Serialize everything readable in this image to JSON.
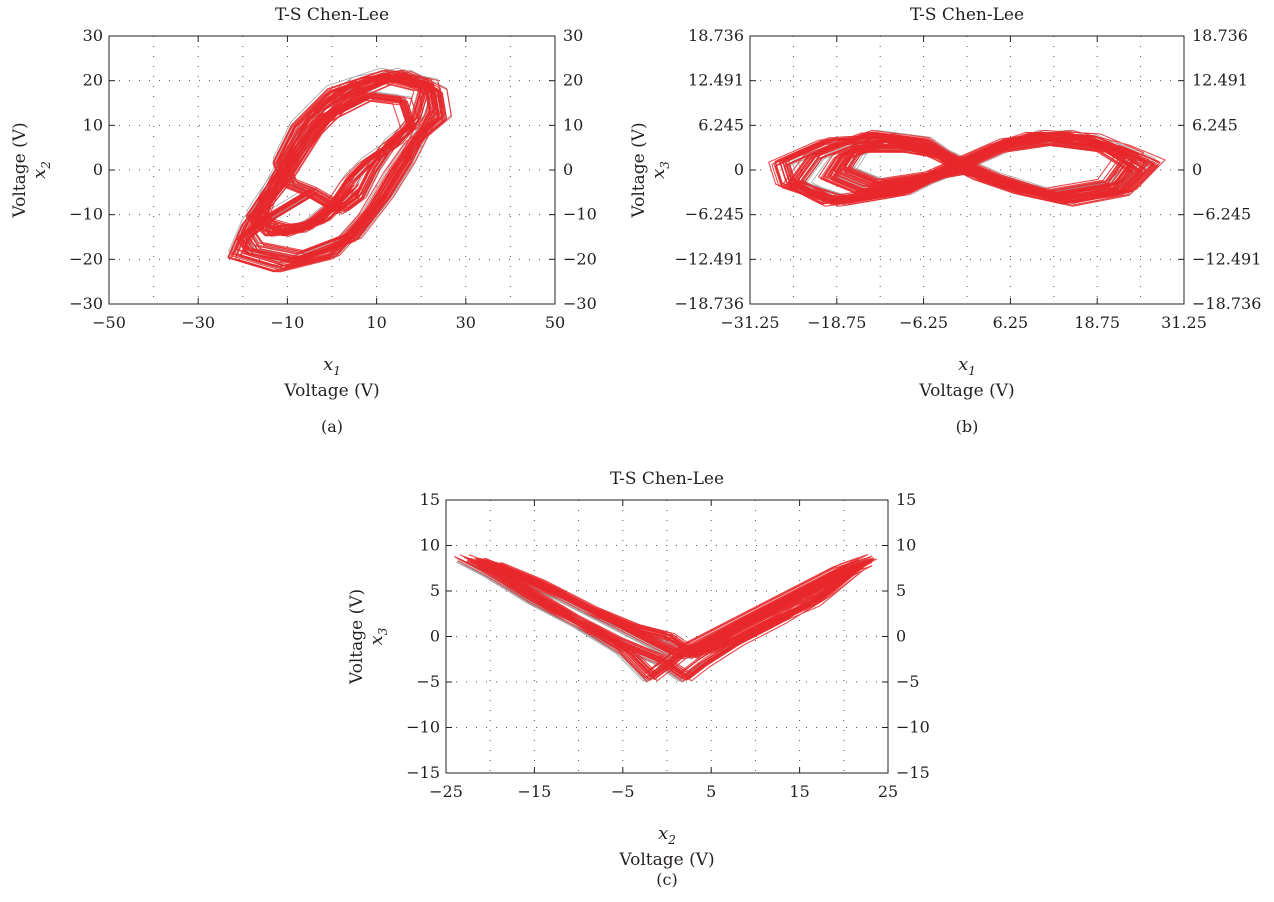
{
  "colors": {
    "trajectory_main": "#e8282b",
    "trajectory_halo": "#9a9a9a",
    "axis": "#231f20"
  },
  "chart_data": [
    {
      "type": "line",
      "panel_label": "(a)",
      "title": "T-S Chen-Lee",
      "xvar": "x",
      "xvar_sub": "1",
      "yvar": "x",
      "yvar_sub": "2",
      "xlabel": "Voltage (V)",
      "ylabel": "Voltage (V)",
      "xlim": [
        -50,
        50
      ],
      "ylim": [
        -30,
        30
      ],
      "xticks": [
        -50,
        -30,
        -10,
        10,
        30,
        50
      ],
      "xtick_labels": [
        "−50",
        "−30",
        "−10",
        "10",
        "30",
        "50"
      ],
      "yticks": [
        30,
        20,
        10,
        0,
        -10,
        -20,
        -30
      ],
      "ytick_labels": [
        "30",
        "20",
        "10",
        "0",
        "−10",
        "−20",
        "−30"
      ],
      "right_ytick_labels": [
        "30",
        "20",
        "10",
        "0",
        "−10",
        "−20",
        "−30"
      ],
      "grid": true,
      "series": [
        {
          "color": "#e8282b",
          "points": [
            [
              -5,
              -5
            ],
            [
              -15,
              -11
            ],
            [
              -20,
              -15
            ],
            [
              -18,
              -18
            ],
            [
              -8,
              -20
            ],
            [
              5,
              -15
            ],
            [
              12,
              -6
            ],
            [
              17,
              2
            ],
            [
              20,
              8
            ],
            [
              23,
              14
            ],
            [
              22,
              20
            ],
            [
              12,
              22
            ],
            [
              0,
              18
            ],
            [
              -8,
              10
            ],
            [
              -12,
              2
            ],
            [
              -10,
              -3
            ],
            [
              -5,
              -5
            ],
            [
              2,
              -9
            ],
            [
              6,
              -6
            ],
            [
              9,
              0
            ],
            [
              13,
              6
            ],
            [
              18,
              10
            ],
            [
              16,
              16
            ],
            [
              8,
              17
            ],
            [
              -2,
              12
            ],
            [
              -8,
              4
            ],
            [
              -14,
              -4
            ],
            [
              -18,
              -10
            ],
            [
              -14,
              -14
            ],
            [
              -6,
              -13
            ],
            [
              0,
              -8
            ],
            [
              4,
              -2
            ],
            [
              8,
              2
            ],
            [
              14,
              6
            ],
            [
              19,
              12
            ],
            [
              21,
              19
            ],
            [
              13,
              21
            ],
            [
              4,
              17
            ],
            [
              -4,
              9
            ],
            [
              -11,
              -2
            ],
            [
              -19,
              -12
            ],
            [
              -22,
              -19
            ],
            [
              -12,
              -22
            ],
            [
              0,
              -19
            ],
            [
              8,
              -10
            ],
            [
              14,
              0
            ],
            [
              19,
              7
            ],
            [
              25,
              12
            ],
            [
              24,
              18
            ],
            [
              16,
              22
            ],
            [
              6,
              20
            ],
            [
              -3,
              14
            ],
            [
              -9,
              5
            ],
            [
              -15,
              -6
            ],
            [
              -17,
              -12
            ],
            [
              -10,
              -14
            ],
            [
              -2,
              -11
            ],
            [
              5,
              -4
            ]
          ]
        }
      ]
    },
    {
      "type": "line",
      "panel_label": "(b)",
      "title": "T-S Chen-Lee",
      "xvar": "x",
      "xvar_sub": "1",
      "yvar": "x",
      "yvar_sub": "3",
      "xlabel": "Voltage (V)",
      "ylabel": "Voltage (V)",
      "xlim": [
        -31.25,
        31.25
      ],
      "ylim": [
        -18.736,
        18.736
      ],
      "xticks": [
        -31.25,
        -18.75,
        -6.25,
        6.25,
        18.75,
        31.25
      ],
      "xtick_labels": [
        "−31.25",
        "−18.75",
        "−6.25",
        "6.25",
        "18.75",
        "31.25"
      ],
      "yticks": [
        18.736,
        12.491,
        6.245,
        0,
        -6.245,
        -12.491,
        -18.736
      ],
      "ytick_labels": [
        "18.736",
        "12.491",
        "6.245",
        "0",
        "−6.245",
        "−12.491",
        "−18.736"
      ],
      "right_ytick_labels": [
        "18.736",
        "12.491",
        "6.245",
        "0",
        "−6.245",
        "−12.491",
        "−18.736"
      ],
      "grid": true,
      "series": [
        {
          "color": "#e8282b",
          "points": [
            [
              0,
              0
            ],
            [
              -6,
              4
            ],
            [
              -14,
              5
            ],
            [
              -22,
              2
            ],
            [
              -25,
              -2
            ],
            [
              -20,
              -4.5
            ],
            [
              -10,
              -3
            ],
            [
              -2,
              0
            ],
            [
              5,
              3
            ],
            [
              12,
              4
            ],
            [
              20,
              3
            ],
            [
              25,
              0
            ],
            [
              22,
              -3
            ],
            [
              14,
              -4
            ],
            [
              6,
              -2
            ],
            [
              0,
              0
            ],
            [
              -5,
              3
            ],
            [
              -12,
              4
            ],
            [
              -18,
              2
            ],
            [
              -20,
              -1
            ],
            [
              -15,
              -3
            ],
            [
              -8,
              -2
            ],
            [
              -1,
              1
            ],
            [
              6,
              4
            ],
            [
              14,
              5
            ],
            [
              22,
              3
            ],
            [
              27,
              1
            ],
            [
              23,
              -3
            ],
            [
              15,
              -4.5
            ],
            [
              8,
              -3
            ],
            [
              2,
              -1
            ],
            [
              -4,
              2
            ],
            [
              -11,
              4.5
            ],
            [
              -20,
              4
            ],
            [
              -27,
              1
            ],
            [
              -26,
              -2
            ],
            [
              -18,
              -4.5
            ],
            [
              -9,
              -3
            ],
            [
              -3,
              0
            ],
            [
              4,
              3
            ],
            [
              10,
              5
            ],
            [
              18,
              4.5
            ],
            [
              24,
              2
            ],
            [
              21,
              -2
            ],
            [
              12,
              -3.5
            ],
            [
              4,
              -1
            ],
            [
              -3,
              2
            ],
            [
              -9,
              3
            ],
            [
              -16,
              3
            ],
            [
              -18,
              0
            ],
            [
              -13,
              -2
            ],
            [
              -6,
              -1
            ],
            [
              0,
              0
            ]
          ]
        }
      ]
    },
    {
      "type": "line",
      "panel_label": "(c)",
      "title": "T-S Chen-Lee",
      "xvar": "x",
      "xvar_sub": "2",
      "yvar": "x",
      "yvar_sub": "3",
      "xlabel": "Voltage (V)",
      "ylabel": "Voltage (V)",
      "xlim": [
        -25,
        25
      ],
      "ylim": [
        -15,
        15
      ],
      "xticks": [
        -25,
        -15,
        -5,
        5,
        15,
        25
      ],
      "xtick_labels": [
        "−25",
        "−15",
        "−5",
        "5",
        "15",
        "25"
      ],
      "yticks": [
        15,
        10,
        5,
        0,
        -5,
        -10,
        -15
      ],
      "ytick_labels": [
        "15",
        "10",
        "5",
        "0",
        "−5",
        "−10",
        "−15"
      ],
      "right_ytick_labels": [
        "15",
        "10",
        "5",
        "0",
        "−5",
        "−10",
        "−15"
      ],
      "grid": true,
      "series": [
        {
          "color": "#e8282b",
          "points": [
            [
              -23,
              8.5
            ],
            [
              -20,
              7
            ],
            [
              -15,
              4
            ],
            [
              -10,
              1.5
            ],
            [
              -5,
              -1.5
            ],
            [
              -2,
              -4.5
            ],
            [
              0,
              -3
            ],
            [
              2,
              -1.5
            ],
            [
              5,
              0
            ],
            [
              10,
              2.5
            ],
            [
              15,
              5
            ],
            [
              20,
              7.5
            ],
            [
              23,
              8.5
            ],
            [
              20,
              7
            ],
            [
              14,
              4
            ],
            [
              8,
              1
            ],
            [
              3,
              -2
            ],
            [
              0,
              0
            ],
            [
              -4,
              1
            ],
            [
              -9,
              3
            ],
            [
              -15,
              6
            ],
            [
              -20,
              8
            ],
            [
              -17,
              5.5
            ],
            [
              -11,
              2
            ],
            [
              -6,
              -0.5
            ],
            [
              -1,
              -2.5
            ],
            [
              2,
              -4.5
            ],
            [
              4,
              -3
            ],
            [
              8,
              -0.5
            ],
            [
              13,
              2
            ],
            [
              18,
              5
            ],
            [
              22,
              8
            ],
            [
              17,
              4
            ],
            [
              11,
              1.5
            ],
            [
              6,
              -1
            ],
            [
              1,
              -2
            ],
            [
              -3,
              0
            ],
            [
              -7,
              2
            ],
            [
              -12,
              4.5
            ],
            [
              -18,
              7
            ],
            [
              -22,
              8.5
            ]
          ]
        }
      ]
    }
  ]
}
